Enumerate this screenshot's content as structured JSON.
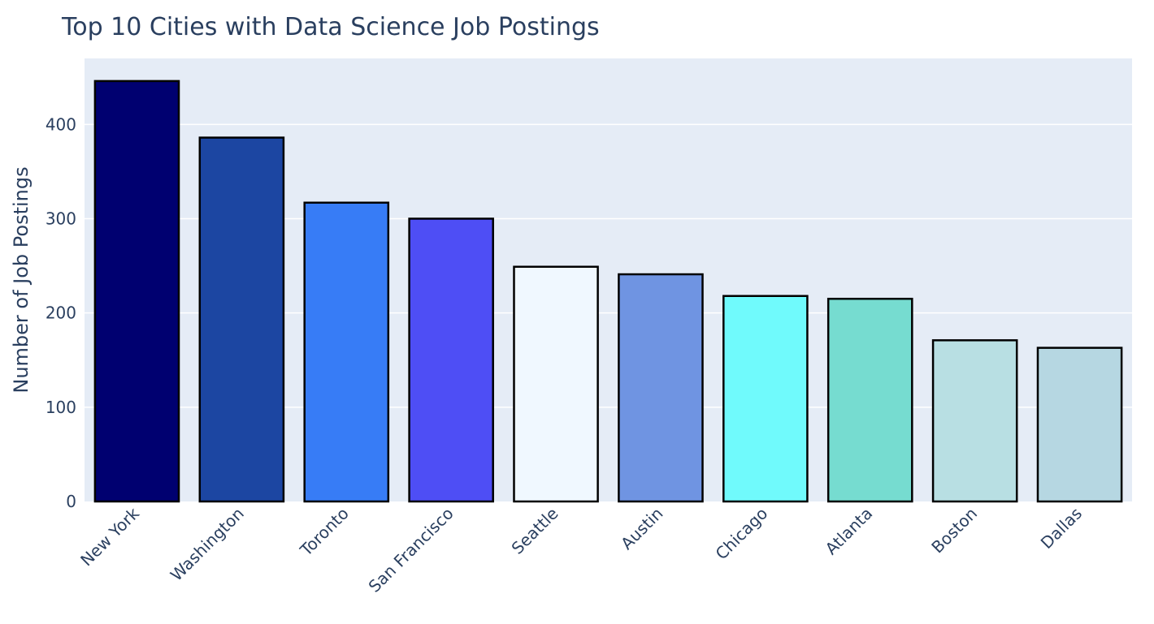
{
  "chart_data": {
    "type": "bar",
    "title": "Top 10 Cities with Data Science Job Postings",
    "xlabel": "",
    "ylabel": "Number of Job Postings",
    "categories": [
      "New York",
      "Washington",
      "Toronto",
      "San Francisco",
      "Seattle",
      "Austin",
      "Chicago",
      "Atlanta",
      "Boston",
      "Dallas"
    ],
    "values": [
      446,
      386,
      317,
      300,
      249,
      241,
      218,
      215,
      171,
      163
    ],
    "colors": [
      "#000070",
      "#1c46a2",
      "#377cf6",
      "#4e4ef5",
      "#f0f8ff",
      "#6f94e2",
      "#70fafc",
      "#76dcd0",
      "#b8dfe3",
      "#b6d7e2"
    ],
    "ylim": [
      0,
      470
    ],
    "yticks": [
      0,
      100,
      200,
      300,
      400
    ],
    "grid": true,
    "legend": "none",
    "plot_bg": "#e5ecf6",
    "bar_outline": "#000000"
  }
}
